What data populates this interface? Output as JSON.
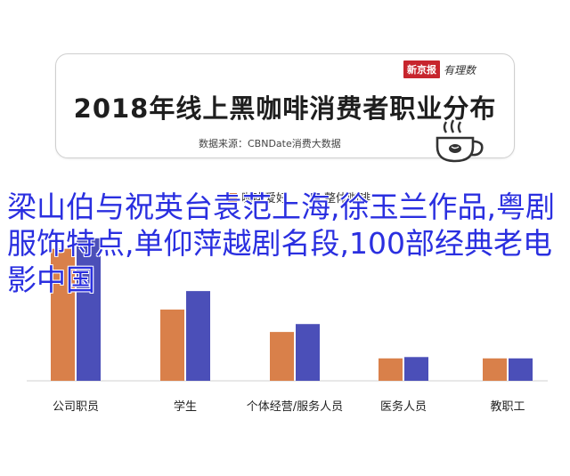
{
  "header": {
    "brand_box": "新京报",
    "brand_script": "有理数",
    "title": "2018年线上黑咖啡消费者职业分布",
    "source": "数据来源：CBNDate消费大数据"
  },
  "overlay": {
    "text": "梁山伯与祝英台袁范上海,徐玉兰作品,粤剧服饰特点,单仰萍越剧名段,100部经典老电影中国"
  },
  "chart_data": {
    "type": "bar",
    "title": "2018年线上黑咖啡消费者职业分布",
    "categories": [
      "公司职员",
      "学生",
      "个体经营/服务人员",
      "医务人员",
      "教职工"
    ],
    "series": [
      {
        "name": "咖啡爱好",
        "color": "#d9804a",
        "values": [
          1.0,
          0.54,
          0.37,
          0.17,
          0.17
        ]
      },
      {
        "name": "整体咖啡",
        "color": "#4b4fb8",
        "values": [
          1.08,
          0.68,
          0.43,
          0.18,
          0.17
        ]
      }
    ],
    "ylim": [
      0,
      1.2
    ],
    "grid": false,
    "legend": "top"
  }
}
